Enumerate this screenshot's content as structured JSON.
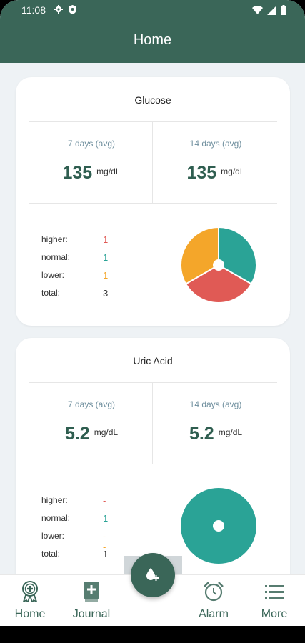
{
  "status_bar": {
    "time": "11:08"
  },
  "header": {
    "title": "Home"
  },
  "cards": [
    {
      "title": "Glucose",
      "avg7": {
        "label": "7 days (avg)",
        "value": "135",
        "unit": "mg/dL"
      },
      "avg14": {
        "label": "14 days (avg)",
        "value": "135",
        "unit": "mg/dL"
      },
      "stats": [
        {
          "label": "higher:",
          "value": "1",
          "color": "#e05a55"
        },
        {
          "label": "normal:",
          "value": "1",
          "color": "#2aa396"
        },
        {
          "label": "lower:",
          "value": "1",
          "color": "#f4a62a"
        },
        {
          "label": "total:",
          "value": "3",
          "color": "#333333"
        }
      ],
      "pie": {
        "higher": 1,
        "normal": 1,
        "lower": 1
      }
    },
    {
      "title": "Uric Acid",
      "avg7": {
        "label": "7 days (avg)",
        "value": "5.2",
        "unit": "mg/dL"
      },
      "avg14": {
        "label": "14 days (avg)",
        "value": "5.2",
        "unit": "mg/dL"
      },
      "stats": [
        {
          "label": "higher:",
          "value": "--",
          "color": "#e05a55"
        },
        {
          "label": "normal:",
          "value": "1",
          "color": "#2aa396"
        },
        {
          "label": "lower:",
          "value": "--",
          "color": "#f4a62a"
        },
        {
          "label": "total:",
          "value": "1",
          "color": "#333333"
        }
      ],
      "pie": {
        "higher": 0,
        "normal": 1,
        "lower": 0
      }
    }
  ],
  "nav": {
    "items": [
      {
        "label": "Home",
        "icon": "award-icon"
      },
      {
        "label": "Journal",
        "icon": "journal-icon"
      },
      {
        "label": "Alarm",
        "icon": "alarm-icon"
      },
      {
        "label": "More",
        "icon": "menu-icon"
      }
    ],
    "fab_icon": "add-drop-icon"
  },
  "colors": {
    "primary": "#3a6658",
    "higher": "#e05a55",
    "normal": "#2aa396",
    "lower": "#f4a62a"
  }
}
